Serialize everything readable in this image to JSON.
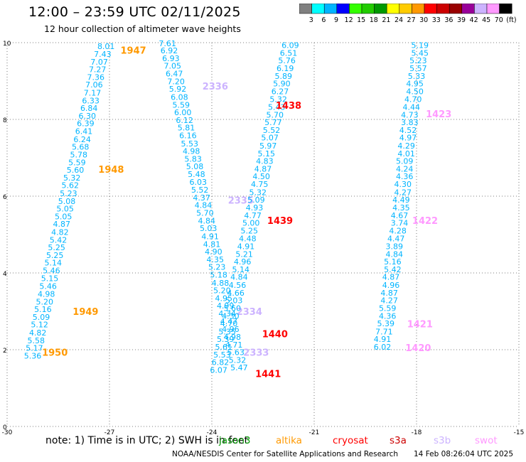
{
  "title": "12:00 – 23:59 UTC 02/11/2025",
  "subtitle": "12 hour collection of altimeter wave heights",
  "colorbar": {
    "segments": [
      "#808080",
      "#00ffff",
      "#00b4ff",
      "#0000ff",
      "#33ff00",
      "#22cc00",
      "#009900",
      "#ffff00",
      "#ffcc00",
      "#ff9900",
      "#ff0000",
      "#cc0000",
      "#990000",
      "#990099",
      "#ccb3ff",
      "#ff99ff",
      "#000000"
    ],
    "labels": [
      "3",
      "6",
      "9",
      "12",
      "15",
      "18",
      "21",
      "24",
      "27",
      "30",
      "33",
      "36",
      "39",
      "42",
      "45",
      "70",
      "(ft)"
    ]
  },
  "footer": {
    "note": "note: 1) Time is in UTC; 2) SWH is in feet",
    "satellites": [
      {
        "name": "jason3",
        "color": "#009900"
      },
      {
        "name": "altika",
        "color": "#ff9900"
      },
      {
        "name": "cryosat",
        "color": "#ff0000"
      },
      {
        "name": "s3a",
        "color": "#cc0000"
      },
      {
        "name": "s3b",
        "color": "#ccb3ff"
      },
      {
        "name": "swot",
        "color": "#ff99ff"
      }
    ],
    "credit": "NOAA/NESDIS Center for Satellite Applications and Research",
    "timestamp": "14 Feb 08:26:04 UTC 2025"
  },
  "chart_data": {
    "type": "scatter",
    "xlim": [
      -30,
      -15
    ],
    "ylim": [
      0,
      10
    ],
    "xticks": [
      "-30",
      "-27",
      "-24",
      "-21",
      "-18",
      "-15"
    ],
    "yticks": [
      "0",
      "2",
      "4",
      "6",
      "8",
      "10"
    ],
    "grid": "dotted",
    "value_color": "#00b4ff",
    "tracks": [
      {
        "name": "track-a",
        "points": [
          {
            "x": -27.1,
            "y": 9.83,
            "v": "8.01"
          },
          {
            "x": -27.2,
            "y": 9.63,
            "v": "7.43"
          },
          {
            "x": -27.3,
            "y": 9.43,
            "v": "7.07"
          },
          {
            "x": -27.35,
            "y": 9.23,
            "v": "7.27"
          },
          {
            "x": -27.4,
            "y": 9.03,
            "v": "7.36"
          },
          {
            "x": -27.45,
            "y": 8.83,
            "v": "7.06"
          },
          {
            "x": -27.5,
            "y": 8.62,
            "v": "7.17"
          },
          {
            "x": -27.55,
            "y": 8.42,
            "v": "6.33"
          },
          {
            "x": -27.6,
            "y": 8.22,
            "v": "6.84"
          },
          {
            "x": -27.65,
            "y": 8.02,
            "v": "6.30"
          },
          {
            "x": -27.7,
            "y": 7.82,
            "v": "6.39"
          },
          {
            "x": -27.75,
            "y": 7.62,
            "v": "6.41"
          },
          {
            "x": -27.8,
            "y": 7.41,
            "v": "6.24"
          },
          {
            "x": -27.85,
            "y": 7.21,
            "v": "5.68"
          },
          {
            "x": -27.9,
            "y": 7.01,
            "v": "5.78"
          },
          {
            "x": -27.95,
            "y": 6.81,
            "v": "5.59"
          },
          {
            "x": -28.0,
            "y": 6.61,
            "v": "5.60"
          },
          {
            "x": -28.1,
            "y": 6.41,
            "v": "5.32"
          },
          {
            "x": -28.15,
            "y": 6.21,
            "v": "5.62"
          },
          {
            "x": -28.2,
            "y": 6.0,
            "v": "5.23"
          },
          {
            "x": -28.25,
            "y": 5.8,
            "v": "5.08"
          },
          {
            "x": -28.3,
            "y": 5.6,
            "v": "5.05"
          },
          {
            "x": -28.35,
            "y": 5.4,
            "v": "5.05"
          },
          {
            "x": -28.4,
            "y": 5.2,
            "v": "4.87"
          },
          {
            "x": -28.45,
            "y": 4.99,
            "v": "4.82"
          },
          {
            "x": -28.5,
            "y": 4.79,
            "v": "5.42"
          },
          {
            "x": -28.55,
            "y": 4.59,
            "v": "5.25"
          },
          {
            "x": -28.6,
            "y": 4.39,
            "v": "5.25"
          },
          {
            "x": -28.65,
            "y": 4.19,
            "v": "5.14"
          },
          {
            "x": -28.7,
            "y": 3.99,
            "v": "5.46"
          },
          {
            "x": -28.75,
            "y": 3.79,
            "v": "5.15"
          },
          {
            "x": -28.8,
            "y": 3.58,
            "v": "5.46"
          },
          {
            "x": -28.85,
            "y": 3.38,
            "v": "4.98"
          },
          {
            "x": -28.9,
            "y": 3.18,
            "v": "5.20"
          },
          {
            "x": -28.95,
            "y": 2.98,
            "v": "5.16"
          },
          {
            "x": -29.0,
            "y": 2.78,
            "v": "5.09"
          },
          {
            "x": -29.05,
            "y": 2.58,
            "v": "5.12"
          },
          {
            "x": -29.1,
            "y": 2.37,
            "v": "4.82"
          },
          {
            "x": -29.15,
            "y": 2.17,
            "v": "5.58"
          },
          {
            "x": -29.2,
            "y": 1.97,
            "v": "5.17"
          },
          {
            "x": -29.25,
            "y": 1.77,
            "v": "5.36"
          }
        ],
        "labels": [
          {
            "x": -26.3,
            "y": 9.71,
            "text": "1947"
          },
          {
            "x": -26.95,
            "y": 6.61,
            "text": "1948"
          },
          {
            "x": -27.7,
            "y": 2.91,
            "text": "1949"
          },
          {
            "x": -28.6,
            "y": 1.84,
            "text": "1950"
          }
        ]
      },
      {
        "name": "track-b",
        "points": [
          {
            "x": -25.3,
            "y": 9.91,
            "v": "7.61"
          },
          {
            "x": -25.25,
            "y": 9.72,
            "v": "6.92"
          },
          {
            "x": -25.2,
            "y": 9.52,
            "v": "6.93"
          },
          {
            "x": -25.15,
            "y": 9.32,
            "v": "7.05"
          },
          {
            "x": -25.1,
            "y": 9.12,
            "v": "6.47"
          },
          {
            "x": -25.05,
            "y": 8.92,
            "v": "7.20"
          },
          {
            "x": -25.0,
            "y": 8.72,
            "v": "5.92"
          },
          {
            "x": -24.95,
            "y": 8.51,
            "v": "6.08"
          },
          {
            "x": -24.9,
            "y": 8.31,
            "v": "5.59"
          },
          {
            "x": -24.85,
            "y": 8.11,
            "v": "6.00"
          },
          {
            "x": -24.8,
            "y": 7.91,
            "v": "6.12"
          },
          {
            "x": -24.75,
            "y": 7.71,
            "v": "5.81"
          },
          {
            "x": -24.7,
            "y": 7.51,
            "v": "6.16"
          },
          {
            "x": -24.65,
            "y": 7.3,
            "v": "5.53"
          },
          {
            "x": -24.6,
            "y": 7.1,
            "v": "4.98"
          },
          {
            "x": -24.55,
            "y": 6.9,
            "v": "5.83"
          },
          {
            "x": -24.5,
            "y": 6.7,
            "v": "5.08"
          },
          {
            "x": -24.45,
            "y": 6.5,
            "v": "5.48"
          },
          {
            "x": -24.4,
            "y": 6.3,
            "v": "6.03"
          },
          {
            "x": -24.35,
            "y": 6.09,
            "v": "5.52"
          },
          {
            "x": -24.3,
            "y": 5.89,
            "v": "4.37"
          },
          {
            "x": -24.25,
            "y": 5.69,
            "v": "4.84"
          },
          {
            "x": -24.2,
            "y": 5.49,
            "v": "5.70"
          },
          {
            "x": -24.15,
            "y": 5.29,
            "v": "4.84"
          },
          {
            "x": -24.1,
            "y": 5.09,
            "v": "5.03"
          },
          {
            "x": -24.05,
            "y": 4.88,
            "v": "4.91"
          },
          {
            "x": -24.0,
            "y": 4.68,
            "v": "4.81"
          },
          {
            "x": -23.95,
            "y": 4.48,
            "v": "4.90"
          },
          {
            "x": -23.9,
            "y": 4.28,
            "v": "4.35"
          },
          {
            "x": -23.85,
            "y": 4.08,
            "v": "5.23"
          },
          {
            "x": -23.8,
            "y": 3.88,
            "v": "5.18"
          },
          {
            "x": -23.75,
            "y": 3.67,
            "v": "4.88"
          },
          {
            "x": -23.7,
            "y": 3.47,
            "v": "5.20"
          },
          {
            "x": -23.65,
            "y": 3.27,
            "v": "4.95"
          },
          {
            "x": -23.6,
            "y": 3.07,
            "v": "4.99"
          },
          {
            "x": -23.55,
            "y": 2.87,
            "v": "4.34"
          },
          {
            "x": -23.5,
            "y": 2.67,
            "v": "4.47"
          },
          {
            "x": -23.45,
            "y": 2.46,
            "v": "4.96"
          },
          {
            "x": -23.4,
            "y": 2.26,
            "v": "4.98"
          },
          {
            "x": -23.35,
            "y": 2.06,
            "v": "4.71"
          },
          {
            "x": -23.3,
            "y": 1.86,
            "v": "5.63"
          },
          {
            "x": -23.25,
            "y": 1.66,
            "v": "5.32"
          },
          {
            "x": -23.2,
            "y": 1.46,
            "v": "5.47"
          }
        ],
        "labels": [
          {
            "x": -23.9,
            "y": 8.78,
            "text": "2336"
          },
          {
            "x": -23.15,
            "y": 5.81,
            "text": "2335"
          },
          {
            "x": -22.9,
            "y": 2.91,
            "text": "2334"
          },
          {
            "x": -22.7,
            "y": 1.84,
            "text": "2333"
          }
        ]
      },
      {
        "name": "track-c",
        "points": [
          {
            "x": -21.7,
            "y": 9.86,
            "v": "6.09"
          },
          {
            "x": -21.75,
            "y": 9.66,
            "v": "6.51"
          },
          {
            "x": -21.8,
            "y": 9.46,
            "v": "5.76"
          },
          {
            "x": -21.85,
            "y": 9.26,
            "v": "6.19"
          },
          {
            "x": -21.9,
            "y": 9.06,
            "v": "5.89"
          },
          {
            "x": -21.95,
            "y": 8.86,
            "v": "5.90"
          },
          {
            "x": -22.0,
            "y": 8.66,
            "v": "6.27"
          },
          {
            "x": -22.05,
            "y": 8.45,
            "v": "5.32"
          },
          {
            "x": -22.1,
            "y": 8.25,
            "v": "5.43"
          },
          {
            "x": -22.15,
            "y": 8.05,
            "v": "5.70"
          },
          {
            "x": -22.2,
            "y": 7.85,
            "v": "5.77"
          },
          {
            "x": -22.25,
            "y": 7.65,
            "v": "5.52"
          },
          {
            "x": -22.3,
            "y": 7.45,
            "v": "5.07"
          },
          {
            "x": -22.35,
            "y": 7.24,
            "v": "5.97"
          },
          {
            "x": -22.4,
            "y": 7.04,
            "v": "5.15"
          },
          {
            "x": -22.45,
            "y": 6.84,
            "v": "4.83"
          },
          {
            "x": -22.5,
            "y": 6.64,
            "v": "4.87"
          },
          {
            "x": -22.55,
            "y": 6.44,
            "v": "4.50"
          },
          {
            "x": -22.6,
            "y": 6.24,
            "v": "4.75"
          },
          {
            "x": -22.65,
            "y": 6.03,
            "v": "5.32"
          },
          {
            "x": -22.7,
            "y": 5.83,
            "v": "5.09"
          },
          {
            "x": -22.75,
            "y": 5.63,
            "v": "4.93"
          },
          {
            "x": -22.8,
            "y": 5.43,
            "v": "4.77"
          },
          {
            "x": -22.85,
            "y": 5.23,
            "v": "5.00"
          },
          {
            "x": -22.9,
            "y": 5.03,
            "v": "5.25"
          },
          {
            "x": -22.95,
            "y": 4.82,
            "v": "4.48"
          },
          {
            "x": -23.0,
            "y": 4.62,
            "v": "4.91"
          },
          {
            "x": -23.05,
            "y": 4.42,
            "v": "5.21"
          },
          {
            "x": -23.1,
            "y": 4.22,
            "v": "4.96"
          },
          {
            "x": -23.15,
            "y": 4.02,
            "v": "5.14"
          },
          {
            "x": -23.2,
            "y": 3.82,
            "v": "4.84"
          },
          {
            "x": -23.25,
            "y": 3.61,
            "v": "4.56"
          },
          {
            "x": -23.3,
            "y": 3.41,
            "v": "4.66"
          },
          {
            "x": -23.35,
            "y": 3.21,
            "v": "5.03"
          },
          {
            "x": -23.4,
            "y": 3.01,
            "v": "5.60"
          },
          {
            "x": -23.45,
            "y": 2.81,
            "v": "4.30"
          },
          {
            "x": -23.5,
            "y": 2.61,
            "v": "4.70"
          },
          {
            "x": -23.55,
            "y": 2.4,
            "v": "5.35"
          },
          {
            "x": -23.6,
            "y": 2.2,
            "v": "5.39"
          },
          {
            "x": -23.65,
            "y": 2.0,
            "v": "5.61"
          },
          {
            "x": -23.7,
            "y": 1.8,
            "v": "5.53"
          },
          {
            "x": -23.75,
            "y": 1.6,
            "v": "6.82"
          },
          {
            "x": -23.8,
            "y": 1.4,
            "v": "6.07"
          }
        ],
        "labels": [
          {
            "x": -21.75,
            "y": 8.28,
            "text": "1438"
          },
          {
            "x": -22.0,
            "y": 5.28,
            "text": "1439"
          },
          {
            "x": -22.15,
            "y": 2.32,
            "text": "1440"
          },
          {
            "x": -22.35,
            "y": 1.29,
            "text": "1441"
          }
        ]
      },
      {
        "name": "track-d",
        "points": [
          {
            "x": -17.9,
            "y": 9.86,
            "v": "5.19"
          },
          {
            "x": -17.9,
            "y": 9.66,
            "v": "5.45"
          },
          {
            "x": -17.95,
            "y": 9.46,
            "v": "5.23"
          },
          {
            "x": -17.95,
            "y": 9.26,
            "v": "5.57"
          },
          {
            "x": -18.0,
            "y": 9.06,
            "v": "5.33"
          },
          {
            "x": -18.05,
            "y": 8.86,
            "v": "4.95"
          },
          {
            "x": -18.05,
            "y": 8.66,
            "v": "4.50"
          },
          {
            "x": -18.1,
            "y": 8.45,
            "v": "4.70"
          },
          {
            "x": -18.15,
            "y": 8.25,
            "v": "4.44"
          },
          {
            "x": -18.2,
            "y": 8.05,
            "v": "4.73"
          },
          {
            "x": -18.2,
            "y": 7.85,
            "v": "3.83"
          },
          {
            "x": -18.25,
            "y": 7.65,
            "v": "4.52"
          },
          {
            "x": -18.25,
            "y": 7.45,
            "v": "4.97"
          },
          {
            "x": -18.3,
            "y": 7.24,
            "v": "4.29"
          },
          {
            "x": -18.3,
            "y": 7.04,
            "v": "4.01"
          },
          {
            "x": -18.35,
            "y": 6.84,
            "v": "5.09"
          },
          {
            "x": -18.35,
            "y": 6.64,
            "v": "4.24"
          },
          {
            "x": -18.35,
            "y": 6.44,
            "v": "4.36"
          },
          {
            "x": -18.4,
            "y": 6.24,
            "v": "4.30"
          },
          {
            "x": -18.4,
            "y": 6.03,
            "v": "4.27"
          },
          {
            "x": -18.45,
            "y": 5.83,
            "v": "4.49"
          },
          {
            "x": -18.45,
            "y": 5.63,
            "v": "4.35"
          },
          {
            "x": -18.5,
            "y": 5.43,
            "v": "4.67"
          },
          {
            "x": -18.5,
            "y": 5.23,
            "v": "3.74"
          },
          {
            "x": -18.55,
            "y": 5.03,
            "v": "4.28"
          },
          {
            "x": -18.6,
            "y": 4.82,
            "v": "4.47"
          },
          {
            "x": -18.65,
            "y": 4.62,
            "v": "3.89"
          },
          {
            "x": -18.65,
            "y": 4.42,
            "v": "4.84"
          },
          {
            "x": -18.7,
            "y": 4.22,
            "v": "5.16"
          },
          {
            "x": -18.7,
            "y": 4.02,
            "v": "5.42"
          },
          {
            "x": -18.75,
            "y": 3.82,
            "v": "4.87"
          },
          {
            "x": -18.75,
            "y": 3.61,
            "v": "4.96"
          },
          {
            "x": -18.8,
            "y": 3.41,
            "v": "4.87"
          },
          {
            "x": -18.8,
            "y": 3.21,
            "v": "4.27"
          },
          {
            "x": -18.85,
            "y": 3.01,
            "v": "5.59"
          },
          {
            "x": -18.85,
            "y": 2.81,
            "v": "4.36"
          },
          {
            "x": -18.9,
            "y": 2.61,
            "v": "5.39"
          },
          {
            "x": -18.95,
            "y": 2.4,
            "v": "7.71"
          },
          {
            "x": -19.0,
            "y": 2.2,
            "v": "4.91"
          },
          {
            "x": -19.0,
            "y": 2.0,
            "v": "6.02"
          }
        ],
        "labels": [
          {
            "x": -17.35,
            "y": 8.06,
            "text": "1423"
          },
          {
            "x": -17.75,
            "y": 5.28,
            "text": "1422"
          },
          {
            "x": -17.9,
            "y": 2.58,
            "text": "1421"
          },
          {
            "x": -17.95,
            "y": 1.96,
            "text": "1420"
          }
        ]
      }
    ]
  }
}
